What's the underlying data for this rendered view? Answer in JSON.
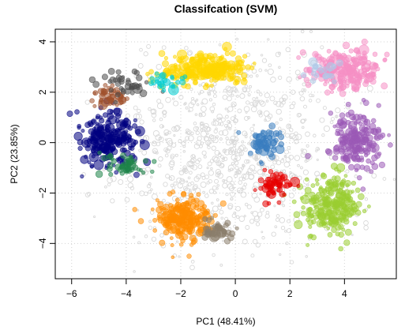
{
  "chart_data": {
    "type": "scatter",
    "title": "Classifcation (SVM)",
    "xlabel": "PC1 (48.41%)",
    "ylabel": "PC2 (23.85%)",
    "xlim": [
      -6.6,
      5.9
    ],
    "ylim": [
      -5.4,
      4.5
    ],
    "xticks": [
      -6,
      -4,
      -2,
      0,
      2,
      4
    ],
    "yticks": [
      -4,
      -2,
      0,
      2,
      4
    ],
    "grid": true,
    "legend": "none",
    "background_points": {
      "color": "#d9d9d9",
      "count": 900,
      "center": [
        -0.3,
        -0.4
      ],
      "spread": [
        2.2,
        1.9
      ]
    },
    "series": [
      {
        "color": "#FFD700",
        "center": [
          -1.0,
          2.9
        ],
        "spread": [
          0.75,
          0.35
        ],
        "count": 260
      },
      {
        "color": "#F68FC4",
        "center": [
          4.0,
          2.9
        ],
        "spread": [
          0.6,
          0.4
        ],
        "count": 220
      },
      {
        "color": "#000080",
        "center": [
          -4.6,
          0.2
        ],
        "spread": [
          0.5,
          0.5
        ],
        "count": 220
      },
      {
        "color": "#9B59B6",
        "center": [
          4.4,
          0.0
        ],
        "spread": [
          0.45,
          0.55
        ],
        "count": 200
      },
      {
        "color": "#9ACD32",
        "center": [
          3.5,
          -2.4
        ],
        "spread": [
          0.55,
          0.6
        ],
        "count": 240
      },
      {
        "color": "#FF8C00",
        "center": [
          -1.9,
          -3.0
        ],
        "spread": [
          0.5,
          0.45
        ],
        "count": 220
      },
      {
        "color": "#3A7DC0",
        "center": [
          1.1,
          0.0
        ],
        "spread": [
          0.35,
          0.28
        ],
        "count": 60
      },
      {
        "color": "#E60000",
        "center": [
          1.5,
          -1.7
        ],
        "spread": [
          0.3,
          0.25
        ],
        "count": 60
      },
      {
        "color": "#A0522D",
        "center": [
          -4.6,
          1.8
        ],
        "spread": [
          0.35,
          0.2
        ],
        "count": 50
      },
      {
        "color": "#1E8449",
        "center": [
          -4.1,
          -0.9
        ],
        "spread": [
          0.45,
          0.25
        ],
        "count": 45
      },
      {
        "color": "#8B7D6B",
        "center": [
          -0.7,
          -3.5
        ],
        "spread": [
          0.3,
          0.2
        ],
        "count": 50
      },
      {
        "color": "#4D4D4D",
        "center": [
          -4.0,
          2.3
        ],
        "spread": [
          0.5,
          0.3
        ],
        "count": 40
      },
      {
        "color": "#00CED1",
        "center": [
          -2.6,
          2.4
        ],
        "spread": [
          0.35,
          0.18
        ],
        "count": 25
      },
      {
        "color": "#AFC9E8",
        "center": [
          3.1,
          2.8
        ],
        "spread": [
          0.3,
          0.2
        ],
        "count": 20
      }
    ]
  }
}
